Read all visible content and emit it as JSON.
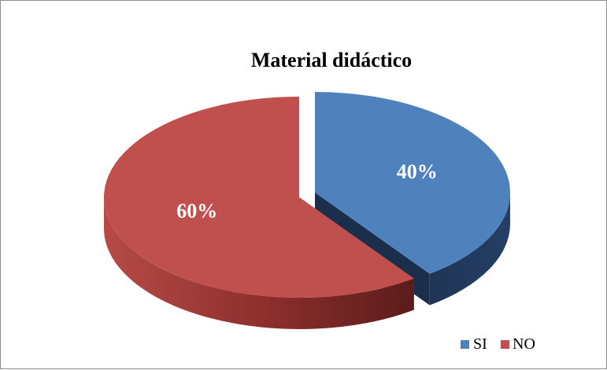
{
  "chart_data": {
    "type": "pie",
    "style": "3d-exploded",
    "title": "Material didáctico",
    "categories": [
      "SI",
      "NO"
    ],
    "values": [
      40,
      60
    ],
    "labels": [
      "40%",
      "60%"
    ],
    "colors": [
      "#4f81bd",
      "#c0504d"
    ],
    "legend_position": "bottom-right"
  }
}
